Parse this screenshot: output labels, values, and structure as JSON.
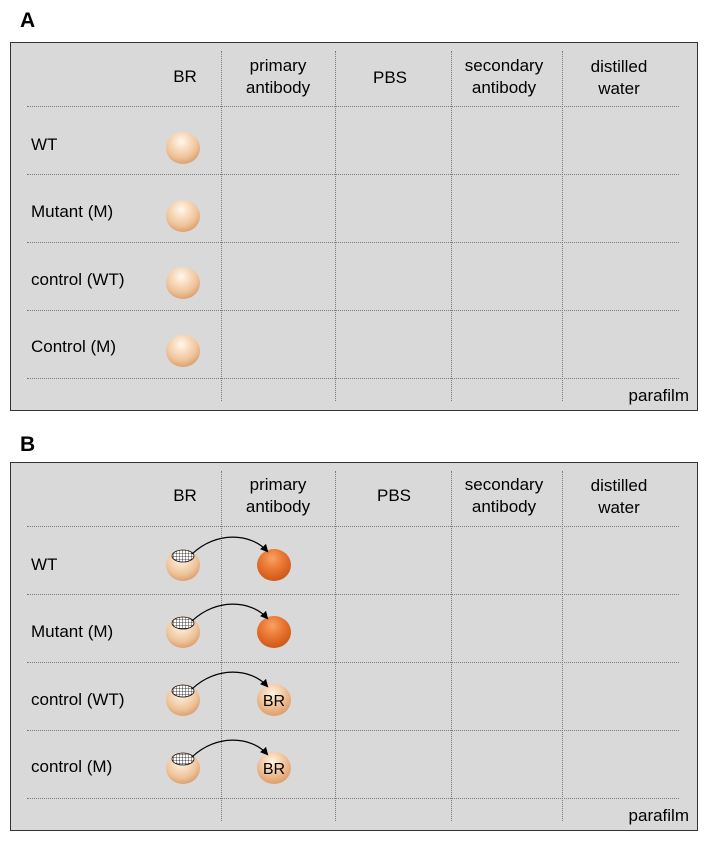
{
  "panels": [
    {
      "label": "A",
      "columns": [
        "BR",
        "primary\nantibody",
        "PBS",
        "secondary\nantibody",
        "distilled\nwater"
      ],
      "rows": [
        "WT",
        "Mutant  (M)",
        "control (WT)",
        "Control (M)"
      ],
      "footer": "parafilm"
    },
    {
      "label": "B",
      "columns": [
        "BR",
        "primary\nantibody",
        "PBS",
        "secondary\nantibody",
        "distilled\nwater"
      ],
      "rows": [
        "WT",
        "Mutant  (M)",
        "control (WT)",
        "control (M)"
      ],
      "footer": "parafilm",
      "transfer_drop_labels": [
        "",
        "",
        "BR",
        "BR"
      ]
    }
  ],
  "colors": {
    "panel_bg": "#d9d9d9",
    "br_drop": "#eec39a",
    "primary_antibody_drop": "#ec7a36"
  }
}
